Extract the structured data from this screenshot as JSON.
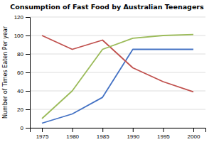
{
  "chart_data": {
    "type": "line",
    "title": "Consumption of Fast Food by Australian Teenagers",
    "ylabel": "Number of Times Eaten Per year",
    "x": [
      1975,
      1980,
      1985,
      1990,
      1995,
      2000
    ],
    "series": [
      {
        "color": "#4472C4",
        "values": [
          5,
          15,
          33,
          85,
          85,
          85
        ]
      },
      {
        "color": "#C0504D",
        "values": [
          100,
          85,
          95,
          65,
          50,
          39
        ]
      },
      {
        "color": "#9BBB59",
        "values": [
          10,
          40,
          85,
          97,
          100,
          101
        ]
      }
    ],
    "xlim": [
      1973,
      2002
    ],
    "xticks": [
      1975,
      1980,
      1985,
      1990,
      1995,
      2000
    ],
    "ylim": [
      0,
      120
    ],
    "yticks": [
      0,
      20,
      40,
      60,
      80,
      100,
      120
    ],
    "grid": true
  }
}
